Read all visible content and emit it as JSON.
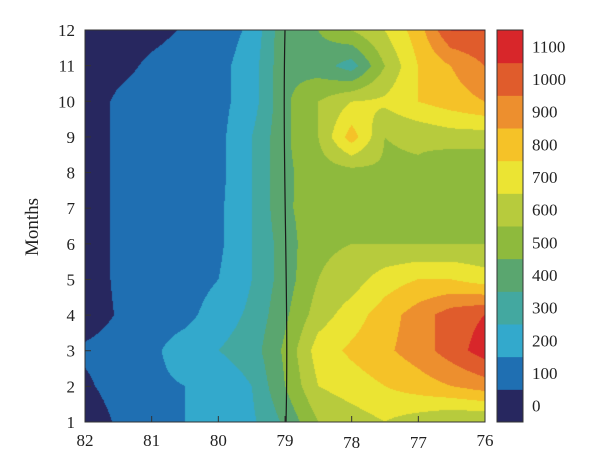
{
  "chart_data": {
    "type": "heatmap",
    "title": "",
    "xlabel": "",
    "ylabel": "Months",
    "x_ticks": [
      "82",
      "81",
      "80",
      "79",
      "78",
      "77",
      "76"
    ],
    "y_ticks": [
      "1",
      "2",
      "3",
      "4",
      "5",
      "6",
      "7",
      "8",
      "9",
      "10",
      "11",
      "12"
    ],
    "xlim": [
      82,
      76
    ],
    "ylim": [
      1,
      12
    ],
    "colorbar": {
      "ticks": [
        "0",
        "100",
        "200",
        "300",
        "400",
        "500",
        "600",
        "700",
        "800",
        "900",
        "1000",
        "1100"
      ],
      "range": [
        0,
        1200
      ],
      "colors": [
        "#27275f",
        "#1f6fb2",
        "#33a9cc",
        "#43a8a0",
        "#5aa66f",
        "#8eba3d",
        "#b7cb3d",
        "#ebe433",
        "#f5c228",
        "#ed8f2e",
        "#e05c2c",
        "#d8262a"
      ]
    },
    "reference_line_x": 79,
    "z_grid": {
      "x": [
        82,
        81.5,
        81,
        80.5,
        80,
        79.5,
        79,
        78.5,
        78,
        77.5,
        77,
        76.5,
        76
      ],
      "y": [
        1,
        2,
        3,
        4,
        5,
        6,
        7,
        8,
        9,
        10,
        11,
        12
      ],
      "z": [
        [
          20,
          120,
          170,
          200,
          230,
          280,
          420,
          600,
          650,
          700,
          650,
          600,
          600
        ],
        [
          80,
          150,
          180,
          200,
          230,
          300,
          500,
          700,
          750,
          800,
          850,
          900,
          950
        ],
        [
          120,
          150,
          180,
          250,
          300,
          350,
          520,
          750,
          820,
          880,
          950,
          1050,
          1150
        ],
        [
          40,
          110,
          150,
          170,
          250,
          320,
          480,
          650,
          750,
          850,
          950,
          1050,
          1100
        ],
        [
          40,
          120,
          150,
          150,
          200,
          300,
          450,
          600,
          650,
          750,
          800,
          800,
          750
        ],
        [
          40,
          120,
          150,
          150,
          180,
          300,
          450,
          580,
          600,
          600,
          600,
          600,
          600
        ],
        [
          40,
          120,
          150,
          150,
          180,
          300,
          480,
          560,
          580,
          580,
          580,
          580,
          580
        ],
        [
          40,
          120,
          150,
          150,
          170,
          300,
          480,
          550,
          560,
          580,
          580,
          500,
          500
        ],
        [
          40,
          120,
          150,
          150,
          170,
          300,
          480,
          600,
          850,
          600,
          620,
          650,
          650
        ],
        [
          40,
          120,
          150,
          150,
          170,
          250,
          480,
          600,
          700,
          720,
          800,
          850,
          900
        ],
        [
          40,
          70,
          120,
          150,
          170,
          250,
          480,
          450,
          350,
          600,
          800,
          900,
          1000
        ],
        [
          40,
          50,
          70,
          110,
          150,
          220,
          480,
          500,
          600,
          700,
          850,
          1100,
          1100
        ]
      ]
    }
  }
}
